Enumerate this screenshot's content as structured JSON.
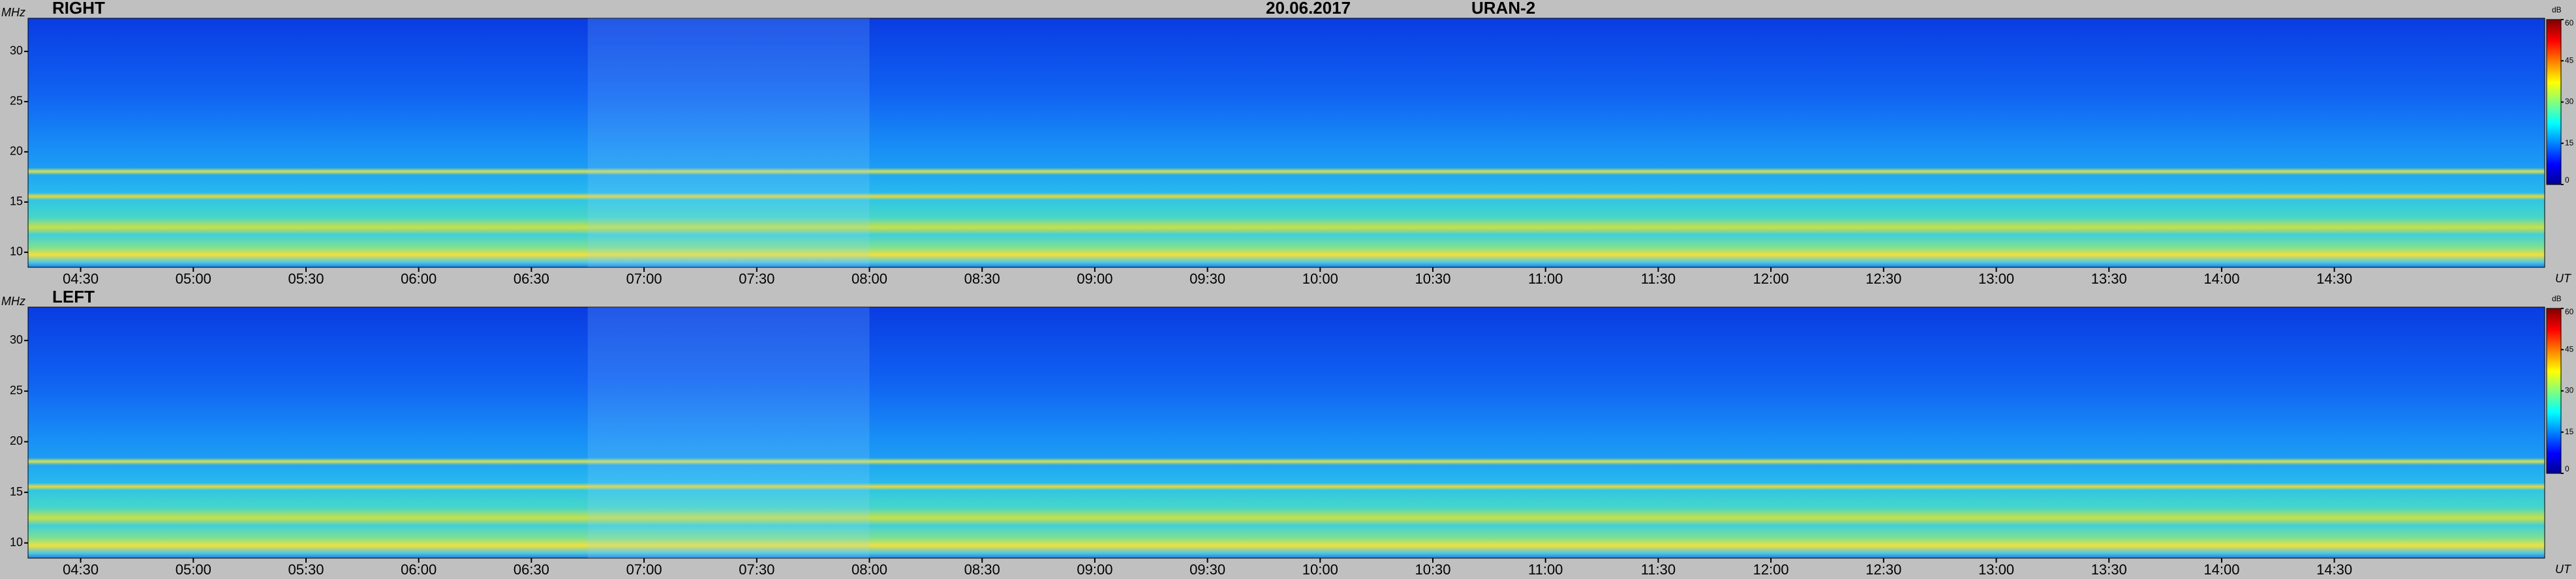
{
  "chart_data": [
    {
      "type": "heatmap",
      "title": "RIGHT",
      "annotations": [
        "20.06.2017",
        "URAN-2"
      ],
      "y_label": "MHz",
      "x_label": "UT",
      "xlim": [
        256,
        926
      ],
      "ylim": [
        8.5,
        33.3
      ],
      "yticks": [
        10,
        15,
        20,
        25,
        30
      ],
      "xticks": [
        {
          "value": 270,
          "label": "04:30"
        },
        {
          "value": 300,
          "label": "05:00"
        },
        {
          "value": 330,
          "label": "05:30"
        },
        {
          "value": 360,
          "label": "06:00"
        },
        {
          "value": 390,
          "label": "06:30"
        },
        {
          "value": 420,
          "label": "07:00"
        },
        {
          "value": 450,
          "label": "07:30"
        },
        {
          "value": 480,
          "label": "08:00"
        },
        {
          "value": 510,
          "label": "08:30"
        },
        {
          "value": 540,
          "label": "09:00"
        },
        {
          "value": 570,
          "label": "09:30"
        },
        {
          "value": 600,
          "label": "10:00"
        },
        {
          "value": 630,
          "label": "10:30"
        },
        {
          "value": 660,
          "label": "11:00"
        },
        {
          "value": 690,
          "label": "11:30"
        },
        {
          "value": 720,
          "label": "12:00"
        },
        {
          "value": 750,
          "label": "12:30"
        },
        {
          "value": 780,
          "label": "13:00"
        },
        {
          "value": 810,
          "label": "13:30"
        },
        {
          "value": 840,
          "label": "14:00"
        },
        {
          "value": 870,
          "label": "14:30"
        }
      ],
      "colorbar": {
        "label": "dB",
        "lim": [
          0,
          60
        ],
        "ticks": [
          0,
          15,
          30,
          45,
          60
        ]
      }
    },
    {
      "type": "heatmap",
      "title": "LEFT",
      "y_label": "MHz",
      "x_label": "UT",
      "xlim": [
        256,
        926
      ],
      "ylim": [
        8.5,
        33.3
      ],
      "yticks": [
        10,
        15,
        20,
        25,
        30
      ],
      "xticks": [
        {
          "value": 270,
          "label": "04:30"
        },
        {
          "value": 300,
          "label": "05:00"
        },
        {
          "value": 330,
          "label": "05:30"
        },
        {
          "value": 360,
          "label": "06:00"
        },
        {
          "value": 390,
          "label": "06:30"
        },
        {
          "value": 420,
          "label": "07:00"
        },
        {
          "value": 450,
          "label": "07:30"
        },
        {
          "value": 480,
          "label": "08:00"
        },
        {
          "value": 510,
          "label": "08:30"
        },
        {
          "value": 540,
          "label": "09:00"
        },
        {
          "value": 570,
          "label": "09:30"
        },
        {
          "value": 600,
          "label": "10:00"
        },
        {
          "value": 630,
          "label": "10:30"
        },
        {
          "value": 660,
          "label": "11:00"
        },
        {
          "value": 690,
          "label": "11:30"
        },
        {
          "value": 720,
          "label": "12:00"
        },
        {
          "value": 750,
          "label": "12:30"
        },
        {
          "value": 780,
          "label": "13:00"
        },
        {
          "value": 810,
          "label": "13:30"
        },
        {
          "value": 840,
          "label": "14:00"
        },
        {
          "value": 870,
          "label": "14:30"
        }
      ],
      "colorbar": {
        "label": "dB",
        "lim": [
          0,
          60
        ],
        "ticks": [
          0,
          15,
          30,
          45,
          60
        ]
      }
    }
  ]
}
